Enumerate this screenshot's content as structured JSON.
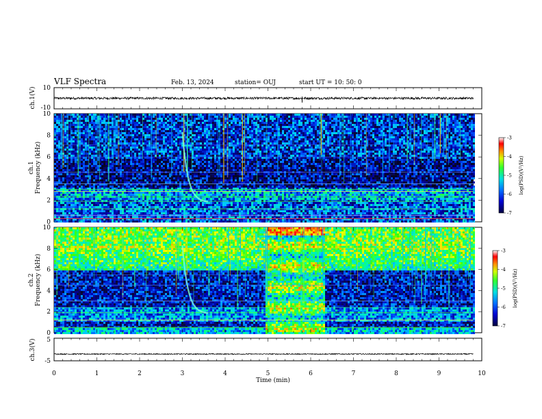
{
  "header": {
    "title": "VLF Spectra",
    "date": "Feb. 13, 2024",
    "station": "station= OUJ",
    "start": "start UT =   10: 50: 0"
  },
  "chart_data": [
    {
      "type": "line",
      "panel": "ch1-waveform",
      "ylabel": "ch.1(V)",
      "yticks": [
        "10",
        "-10"
      ],
      "ylim": [
        -10,
        10
      ],
      "xlim": [
        0,
        10
      ],
      "x_end": 9.8,
      "series": [
        {
          "values_approx": "noise around 0 V, amplitude about ±1 V, spike near 5.8 min"
        }
      ]
    },
    {
      "type": "heatmap",
      "panel": "ch1-spectrogram",
      "ylabel": "ch.1\nFrequency (kHz)",
      "yticks": [
        "0",
        "2",
        "4",
        "6",
        "8",
        "10"
      ],
      "ylim": [
        0,
        10
      ],
      "xlim": [
        0,
        10
      ],
      "x_end": 9.8,
      "colorbar": {
        "label": "log(PSD)(V²/Hz)",
        "ticks": [
          "-3",
          "-4",
          "-5",
          "-6",
          "-7"
        ],
        "range": [
          -7,
          -3
        ]
      },
      "features": [
        "dispersed tone 3.0-3.6 min descending to ~1.8 kHz",
        "broadband hiss below 3 kHz",
        "impulsive sferics 0-10 kHz"
      ]
    },
    {
      "type": "heatmap",
      "panel": "ch2-spectrogram",
      "ylabel": "ch.2\nFrequency (kHz)",
      "yticks": [
        "0",
        "2",
        "4",
        "6",
        "8",
        "10"
      ],
      "ylim": [
        0,
        10
      ],
      "xlim": [
        0,
        10
      ],
      "x_end": 9.8,
      "colorbar": {
        "label": "log(PSD)(V²/Hz)",
        "ticks": [
          "-3",
          "-4",
          "-5",
          "-6",
          "-7"
        ],
        "range": [
          -7,
          -3
        ]
      },
      "features": [
        "strong broadband interference 4.9-6.3 min",
        "dispersed tone 3.0-3.6 min",
        "high-level noise above 6 kHz"
      ]
    },
    {
      "type": "line",
      "panel": "ch3-waveform",
      "ylabel": "ch.3(V)",
      "xlabel": "Time (min)",
      "yticks": [
        "5",
        "-5"
      ],
      "xticks": [
        "0",
        "1",
        "2",
        "3",
        "4",
        "5",
        "6",
        "7",
        "8",
        "9",
        "10"
      ],
      "ylim": [
        -5,
        5
      ],
      "xlim": [
        0,
        10
      ],
      "x_end": 9.8,
      "series": [
        {
          "values_approx": "constant near -2 V"
        }
      ]
    }
  ],
  "colors": {
    "colormap": [
      "#000000",
      "#0a0a3c",
      "#0000aa",
      "#0050ff",
      "#00c8ff",
      "#00ffa0",
      "#40ff00",
      "#ffff00",
      "#ff8000",
      "#ff0000",
      "#ffffff"
    ]
  }
}
